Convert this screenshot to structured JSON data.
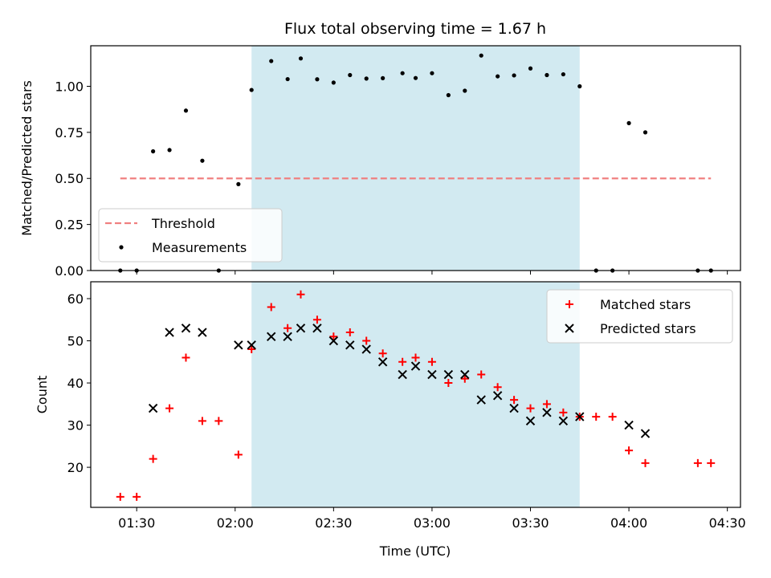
{
  "chart_data": {
    "title": "Flux total observing time = 1.67 h",
    "xlabel": "Time (UTC)",
    "x_tick_labels": [
      "01:30",
      "02:00",
      "02:30",
      "03:00",
      "03:30",
      "04:00",
      "04:30"
    ],
    "x_range": [
      "01:16",
      "04:34"
    ],
    "highlight_range": [
      "02:05",
      "03:45"
    ],
    "highlight_color": "#add8e6",
    "panels": [
      {
        "type": "scatter",
        "ylabel": "Matched/Predicted stars",
        "ylim": [
          0,
          1.22
        ],
        "y_ticks": [
          "0.00",
          "0.25",
          "0.50",
          "0.75",
          "1.00"
        ],
        "legend_position": "lower-left",
        "threshold": {
          "name": "Threshold",
          "y": 0.5,
          "x_start": "01:25",
          "x_end": "04:25",
          "color": "#f08080"
        },
        "series": [
          {
            "name": "Measurements",
            "color": "#000000",
            "marker": "dot",
            "points": [
              [
                "01:25",
                0.0
              ],
              [
                "01:30",
                0.0
              ],
              [
                "01:35",
                0.647
              ],
              [
                "01:40",
                0.654
              ],
              [
                "01:45",
                0.868
              ],
              [
                "01:50",
                0.596
              ],
              [
                "01:55",
                0.0
              ],
              [
                "02:01",
                0.469
              ],
              [
                "02:05",
                0.98
              ],
              [
                "02:11",
                1.137
              ],
              [
                "02:16",
                1.039
              ],
              [
                "02:20",
                1.151
              ],
              [
                "02:25",
                1.038
              ],
              [
                "02:30",
                1.02
              ],
              [
                "02:35",
                1.061
              ],
              [
                "02:40",
                1.042
              ],
              [
                "02:45",
                1.044
              ],
              [
                "02:51",
                1.071
              ],
              [
                "02:55",
                1.045
              ],
              [
                "03:00",
                1.071
              ],
              [
                "03:05",
                0.952
              ],
              [
                "03:10",
                0.976
              ],
              [
                "03:15",
                1.167
              ],
              [
                "03:20",
                1.054
              ],
              [
                "03:25",
                1.059
              ],
              [
                "03:30",
                1.097
              ],
              [
                "03:35",
                1.061
              ],
              [
                "03:40",
                1.065
              ],
              [
                "03:45",
                1.0
              ],
              [
                "03:50",
                0.0
              ],
              [
                "03:55",
                0.0
              ],
              [
                "04:00",
                0.8
              ],
              [
                "04:05",
                0.75
              ],
              [
                "04:21",
                0.0
              ],
              [
                "04:25",
                0.0
              ]
            ]
          }
        ]
      },
      {
        "type": "scatter",
        "ylabel": "Count",
        "ylim": [
          10.5,
          64
        ],
        "y_ticks": [
          "20",
          "30",
          "40",
          "50",
          "60"
        ],
        "legend_position": "upper-right",
        "series": [
          {
            "name": "Matched stars",
            "color": "#ff0000",
            "marker": "plus",
            "points": [
              [
                "01:25",
                13
              ],
              [
                "01:30",
                13
              ],
              [
                "01:35",
                22
              ],
              [
                "01:40",
                34
              ],
              [
                "01:45",
                46
              ],
              [
                "01:50",
                31
              ],
              [
                "01:55",
                31
              ],
              [
                "02:01",
                23
              ],
              [
                "02:05",
                48
              ],
              [
                "02:11",
                58
              ],
              [
                "02:16",
                53
              ],
              [
                "02:20",
                61
              ],
              [
                "02:25",
                55
              ],
              [
                "02:30",
                51
              ],
              [
                "02:35",
                52
              ],
              [
                "02:40",
                50
              ],
              [
                "02:45",
                47
              ],
              [
                "02:51",
                45
              ],
              [
                "02:55",
                46
              ],
              [
                "03:00",
                45
              ],
              [
                "03:05",
                40
              ],
              [
                "03:10",
                41
              ],
              [
                "03:15",
                42
              ],
              [
                "03:20",
                39
              ],
              [
                "03:25",
                36
              ],
              [
                "03:30",
                34
              ],
              [
                "03:35",
                35
              ],
              [
                "03:40",
                33
              ],
              [
                "03:45",
                32
              ],
              [
                "03:50",
                32
              ],
              [
                "03:55",
                32
              ],
              [
                "04:00",
                24
              ],
              [
                "04:05",
                21
              ],
              [
                "04:21",
                21
              ],
              [
                "04:25",
                21
              ]
            ]
          },
          {
            "name": "Predicted stars",
            "color": "#000000",
            "marker": "x",
            "points": [
              [
                "01:35",
                34
              ],
              [
                "01:40",
                52
              ],
              [
                "01:45",
                53
              ],
              [
                "01:50",
                52
              ],
              [
                "02:01",
                49
              ],
              [
                "02:05",
                49
              ],
              [
                "02:11",
                51
              ],
              [
                "02:16",
                51
              ],
              [
                "02:20",
                53
              ],
              [
                "02:25",
                53
              ],
              [
                "02:30",
                50
              ],
              [
                "02:35",
                49
              ],
              [
                "02:40",
                48
              ],
              [
                "02:45",
                45
              ],
              [
                "02:51",
                42
              ],
              [
                "02:55",
                44
              ],
              [
                "03:00",
                42
              ],
              [
                "03:05",
                42
              ],
              [
                "03:10",
                42
              ],
              [
                "03:15",
                36
              ],
              [
                "03:20",
                37
              ],
              [
                "03:25",
                34
              ],
              [
                "03:30",
                31
              ],
              [
                "03:35",
                33
              ],
              [
                "03:40",
                31
              ],
              [
                "03:45",
                32
              ],
              [
                "04:00",
                30
              ],
              [
                "04:05",
                28
              ]
            ]
          }
        ]
      }
    ]
  }
}
